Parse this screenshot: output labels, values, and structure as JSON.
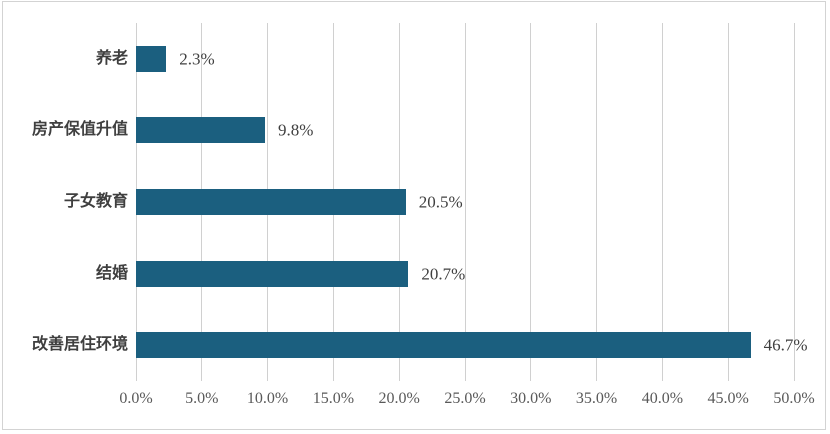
{
  "chart_data": {
    "type": "bar",
    "orientation": "horizontal",
    "title": "",
    "xlabel": "",
    "ylabel": "",
    "categories": [
      "养老",
      "房产保值升值",
      "子女教育",
      "结婚",
      "改善居住环境"
    ],
    "values": [
      2.3,
      9.8,
      20.5,
      20.7,
      46.7
    ],
    "value_labels": [
      "2.3%",
      "9.8%",
      "20.5%",
      "20.7%",
      "46.7%"
    ],
    "xlim": [
      0,
      50
    ],
    "x_tick_step": 5,
    "x_ticks": [
      "0.0%",
      "5.0%",
      "10.0%",
      "15.0%",
      "20.0%",
      "25.0%",
      "30.0%",
      "35.0%",
      "40.0%",
      "45.0%",
      "50.0%"
    ],
    "grid": "vertical",
    "legend": "none",
    "colors": {
      "bar_fill": "#1b5f7f",
      "gridline": "#d0d0d0",
      "frame_border": "#d3d3d3",
      "tick_text": "#595959",
      "label_text": "#3f3f3f",
      "background": "#ffffff"
    }
  }
}
